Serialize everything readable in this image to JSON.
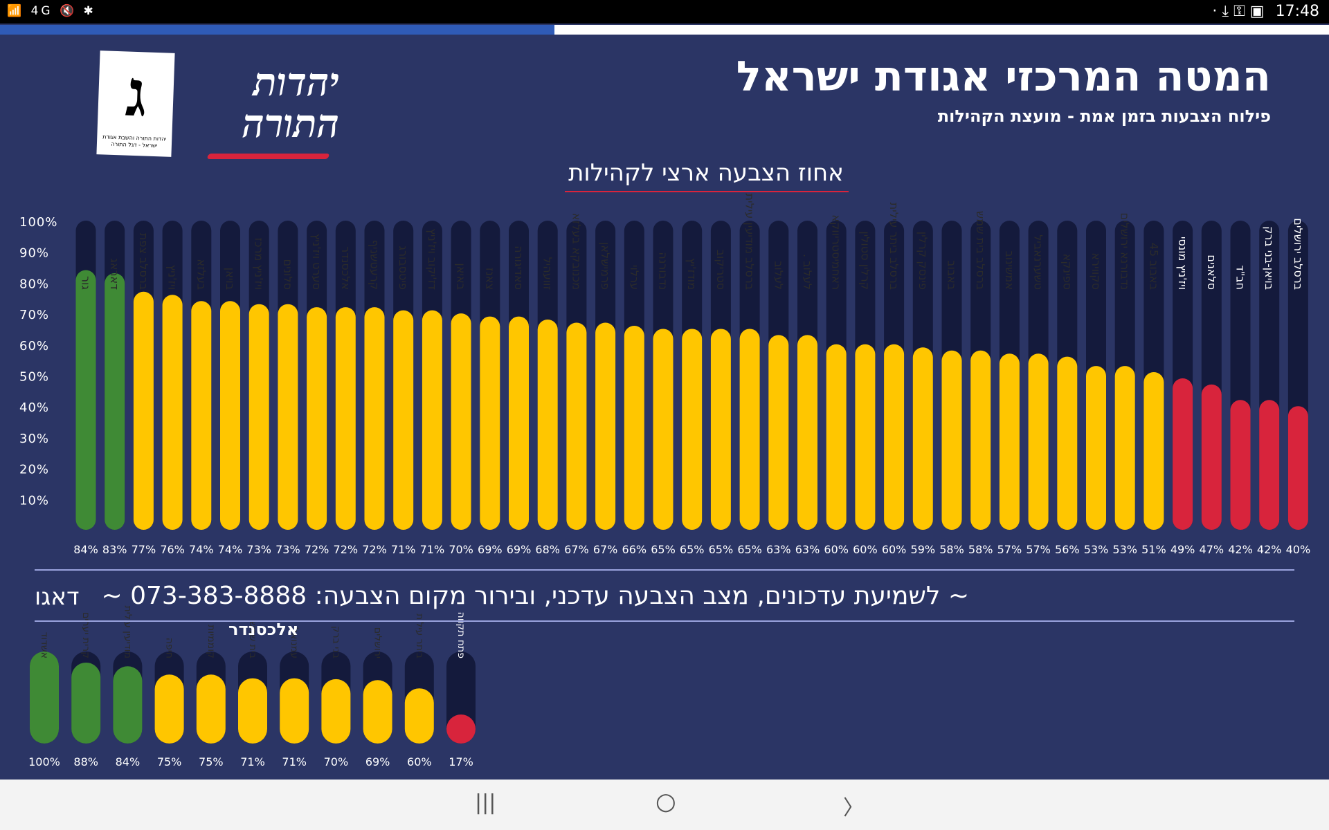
{
  "statusbar": {
    "left_icons": "📶 4G 🔇 ✱",
    "right_icons": "· ⤓ ⚿ ▣",
    "time": "17:48"
  },
  "progress": {
    "fraction": 0.417
  },
  "header": {
    "title": "המטה המרכזי אגודת ישראל",
    "subtitle": "פילוח הצבעות בזמן אמת - מועצת הקהילות"
  },
  "logo": {
    "letter": "ג",
    "caption": "יהדות התורה והשבת אגודת ישראל - דגל התורה",
    "party_line1": "יהדות",
    "party_line2": "התורה"
  },
  "colors": {
    "background": "#2b3565",
    "bar_empty": "#141a3c",
    "green": "#3f8a35",
    "yellow": "#ffc600",
    "red": "#d8243c"
  },
  "chart_data": [
    {
      "type": "bar",
      "title": "אחוז הצבעה ארצי לקהילות",
      "yticks": [
        "10%",
        "20%",
        "30%",
        "40%",
        "50%",
        "60%",
        "70%",
        "80%",
        "90%",
        "100%"
      ],
      "ylim": [
        0,
        100
      ],
      "grid": false,
      "categories": [
        "גור",
        "דאראג",
        "ברסלב צפת",
        "ויז'ניץ",
        "בעלזא",
        "בויאן",
        "ויז'ניץ מרכז",
        "סלונים",
        "סערט ויז'ניץ",
        "אלכסנדר",
        "קרעטשניף",
        "פיטסבורג",
        "דז'יקוב ויז'ניץ",
        "באיאן",
        "צאנז",
        "סאדיגורה",
        "זוועהיל",
        "מכנובקא בעלזא",
        "פרמישלאן",
        "ערלוי",
        "נדבורנה",
        "מודז'יץ",
        "סטריקוב",
        "ברסלב מודיעין עילית",
        "לעלוב",
        "לעלוב .",
        "ראחמיסטריווקא",
        "קרלין סטולין",
        "ברסלב ביתר עילית",
        "פינסק קרלין",
        "באבוב",
        "ברסלב בית שמש",
        "אמשינוב",
        "טשערנאביל",
        "ספינקא",
        "סקווירא",
        "נדבורנא ירושלים",
        "באבוב 45",
        "ויז'ניץ מונסי",
        "סלאנים",
        "חב\"ד",
        "בויאן-בני ברק",
        "ברסלב ירושלים"
      ],
      "values": [
        84,
        83,
        77,
        76,
        74,
        74,
        73,
        73,
        72,
        72,
        72,
        71,
        71,
        70,
        69,
        69,
        68,
        67,
        67,
        66,
        65,
        65,
        65,
        65,
        63,
        63,
        60,
        60,
        60,
        59,
        58,
        58,
        57,
        57,
        56,
        53,
        53,
        51,
        49,
        47,
        42,
        42,
        40
      ],
      "value_labels": [
        "84%",
        "83%",
        "77%",
        "76%",
        "74%",
        "74%",
        "73%",
        "73%",
        "72%",
        "72%",
        "72%",
        "71%",
        "71%",
        "70%",
        "69%",
        "69%",
        "68%",
        "67%",
        "67%",
        "66%",
        "65%",
        "65%",
        "65%",
        "65%",
        "63%",
        "63%",
        "60%",
        "60%",
        "60%",
        "59%",
        "58%",
        "58%",
        "57%",
        "57%",
        "56%",
        "53%",
        "53%",
        "51%",
        "49%",
        "47%",
        "42%",
        "42%",
        "40%"
      ],
      "colors": [
        "green",
        "green",
        "yellow",
        "yellow",
        "yellow",
        "yellow",
        "yellow",
        "yellow",
        "yellow",
        "yellow",
        "yellow",
        "yellow",
        "yellow",
        "yellow",
        "yellow",
        "yellow",
        "yellow",
        "yellow",
        "yellow",
        "yellow",
        "yellow",
        "yellow",
        "yellow",
        "yellow",
        "yellow",
        "yellow",
        "yellow",
        "yellow",
        "yellow",
        "yellow",
        "yellow",
        "yellow",
        "yellow",
        "yellow",
        "yellow",
        "yellow",
        "yellow",
        "yellow",
        "red",
        "red",
        "red",
        "red",
        "red"
      ]
    },
    {
      "type": "bar",
      "categories": [
        "אשדוד",
        "קרית יערים",
        "מודיעין עילית",
        "חיפה",
        "קוממיות",
        "בית שמש",
        "עמנואל",
        "בני ברק",
        "ירושלים",
        "ביתר עילית",
        "פתח תקווה"
      ],
      "values": [
        100,
        88,
        84,
        75,
        75,
        71,
        71,
        70,
        69,
        60,
        17
      ],
      "value_labels": [
        "100%",
        "88%",
        "84%",
        "75%",
        "75%",
        "71%",
        "71%",
        "70%",
        "69%",
        "60%",
        "17%"
      ],
      "colors": [
        "green",
        "green",
        "green",
        "yellow",
        "yellow",
        "yellow",
        "yellow",
        "yellow",
        "yellow",
        "yellow",
        "red"
      ]
    }
  ],
  "footer": {
    "phone_line": "~ לשמיעת עדכונים, מצב הצבעה עדכני, ובירור מקום הצבעה: 073-383-8888 ~",
    "side_label_1": "דאגו",
    "side_label_2": "אלכסנדר"
  },
  "navbar": {
    "recent": "|||",
    "home": "○",
    "back": "〉"
  }
}
